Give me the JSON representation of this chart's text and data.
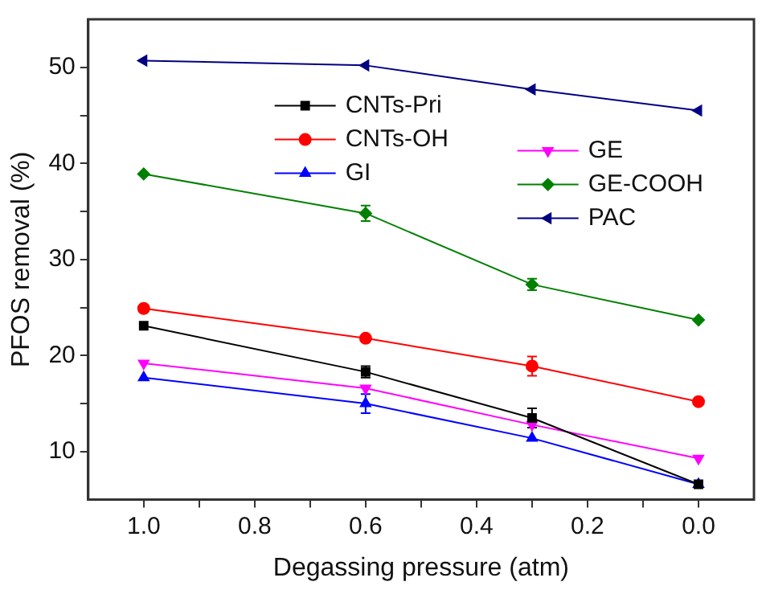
{
  "chart_data": {
    "type": "line",
    "xlabel": "Degassing pressure (atm)",
    "ylabel": "PFOS removal (%)",
    "x": [
      1.0,
      0.6,
      0.3,
      0.0
    ],
    "xlim": [
      1.1,
      -0.1
    ],
    "xticks": [
      {
        "value": 1.0,
        "label": "1.0"
      },
      {
        "value": 0.9,
        "label": null
      },
      {
        "value": 0.8,
        "label": "0.8"
      },
      {
        "value": 0.7,
        "label": null
      },
      {
        "value": 0.6,
        "label": "0.6"
      },
      {
        "value": 0.5,
        "label": null
      },
      {
        "value": 0.4,
        "label": "0.4"
      },
      {
        "value": 0.3,
        "label": null
      },
      {
        "value": 0.2,
        "label": "0.2"
      },
      {
        "value": 0.1,
        "label": null
      },
      {
        "value": 0.0,
        "label": "0.0"
      }
    ],
    "ylim": [
      5,
      55
    ],
    "yticks": [
      10,
      {
        "value": 15,
        "label": null
      },
      20,
      {
        "value": 25,
        "label": null
      },
      30,
      {
        "value": 35,
        "label": null
      },
      40,
      {
        "value": 45,
        "label": null
      },
      50
    ],
    "grid": false,
    "legend": "top",
    "line_style": "solid",
    "series": [
      {
        "name": "CNTs-Pri",
        "color": "#000000",
        "marker": "square",
        "values": [
          23.1,
          18.3,
          13.5,
          6.6
        ],
        "errors": [
          null,
          0.6,
          1.0,
          null
        ]
      },
      {
        "name": "CNTs-OH",
        "color": "#ff0000",
        "marker": "circle",
        "values": [
          24.9,
          21.8,
          18.9,
          15.2
        ],
        "errors": [
          null,
          null,
          1.0,
          null
        ]
      },
      {
        "name": "GI",
        "color": "#0000ff",
        "marker": "triangle",
        "values": [
          17.7,
          15.0,
          11.4,
          6.6
        ],
        "errors": [
          null,
          1.0,
          null,
          null
        ]
      },
      {
        "name": "GE",
        "color": "#ff00ff",
        "marker": "triangle-down",
        "values": [
          19.2,
          16.6,
          12.8,
          9.3
        ],
        "errors": [
          null,
          null,
          null,
          null
        ]
      },
      {
        "name": "GE-COOH",
        "color": "#008000",
        "marker": "diamond",
        "values": [
          38.9,
          34.8,
          27.4,
          23.7
        ],
        "errors": [
          null,
          0.8,
          0.6,
          null
        ]
      },
      {
        "name": "PAC",
        "color": "#000080",
        "marker": "triangle-left",
        "values": [
          50.7,
          50.2,
          47.7,
          45.5
        ]
      }
    ]
  }
}
